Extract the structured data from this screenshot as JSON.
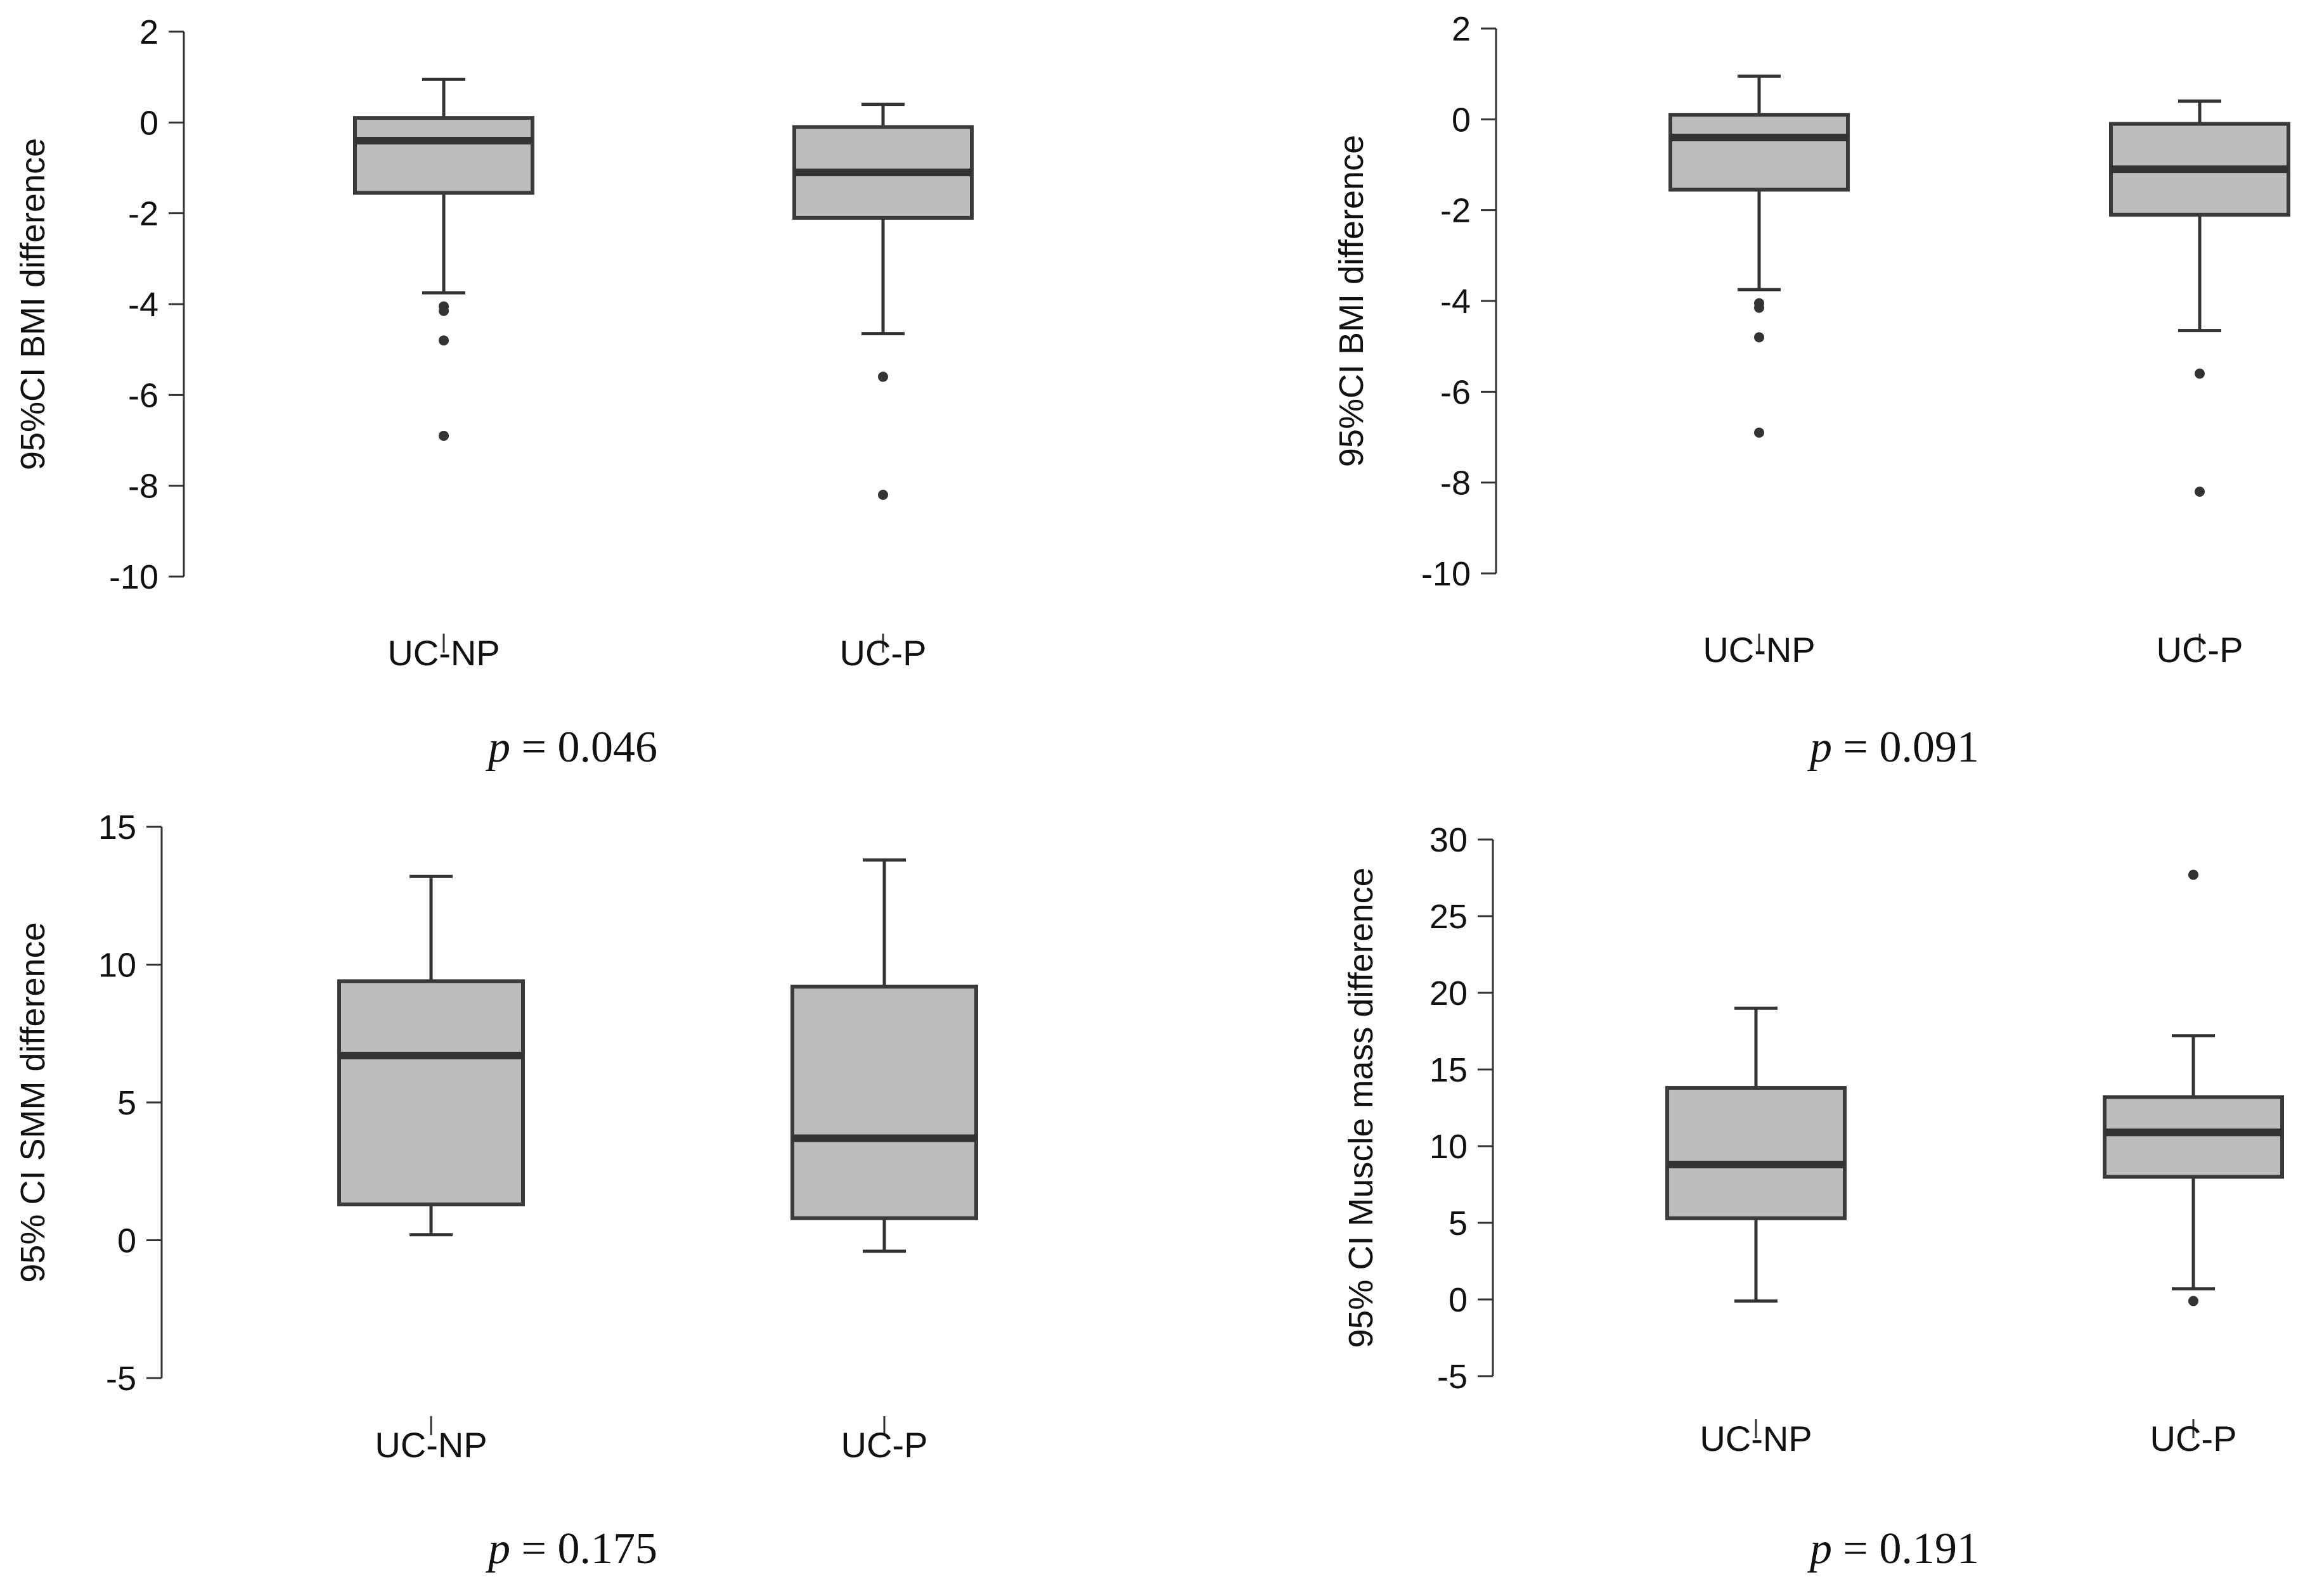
{
  "chart_data": [
    {
      "type": "box",
      "ylabel": "95%CI  BMI difference",
      "ylim": [
        -10,
        2
      ],
      "yticks": [
        2,
        0,
        -2,
        -4,
        -6,
        -8,
        -10
      ],
      "categories": [
        "UC-NP",
        "UC-P"
      ],
      "boxes": [
        {
          "name": "UC-NP",
          "min": -3.75,
          "q1": -1.55,
          "median": -0.4,
          "q3": 0.1,
          "max": 0.95,
          "outliers": [
            -4.05,
            -4.15,
            -4.8,
            -6.9
          ]
        },
        {
          "name": "UC-P",
          "min": -4.65,
          "q1": -2.1,
          "median": -1.1,
          "q3": -0.1,
          "max": 0.4,
          "outliers": [
            -5.6,
            -8.2
          ]
        }
      ],
      "p_label": "p",
      "p_value": "= 0.046"
    },
    {
      "type": "box",
      "ylabel": "95%CI  BMI difference",
      "ylim": [
        -10,
        2
      ],
      "yticks": [
        2,
        0,
        -2,
        -4,
        -6,
        -8,
        -10
      ],
      "categories": [
        "UC-NP",
        "UC-P"
      ],
      "boxes": [
        {
          "name": "UC-NP",
          "min": -3.75,
          "q1": -1.55,
          "median": -0.4,
          "q3": 0.1,
          "max": 0.95,
          "outliers": [
            -4.05,
            -4.15,
            -4.8,
            -6.9
          ]
        },
        {
          "name": "UC-P",
          "min": -4.65,
          "q1": -2.1,
          "median": -1.1,
          "q3": -0.1,
          "max": 0.4,
          "outliers": [
            -5.6,
            -8.2
          ]
        }
      ],
      "p_label": "p",
      "p_value": "= 0.091"
    },
    {
      "type": "box",
      "ylabel": "95% CI SMM difference",
      "ylim": [
        -5,
        15
      ],
      "yticks": [
        15,
        10,
        5,
        0,
        -5
      ],
      "categories": [
        "UC-NP",
        "UC-P"
      ],
      "boxes": [
        {
          "name": "UC-NP",
          "min": 0.2,
          "q1": 1.3,
          "median": 6.7,
          "q3": 9.4,
          "max": 13.2,
          "outliers": []
        },
        {
          "name": "UC-P",
          "min": -0.4,
          "q1": 0.8,
          "median": 3.7,
          "q3": 9.2,
          "max": 13.8,
          "outliers": []
        }
      ],
      "p_label": "p",
      "p_value": "= 0.175"
    },
    {
      "type": "box",
      "ylabel": "95% CI  Muscle mass difference",
      "ylim": [
        -5,
        30
      ],
      "yticks": [
        30,
        25,
        20,
        15,
        10,
        5,
        0,
        -5
      ],
      "categories": [
        "UC-NP",
        "UC-P"
      ],
      "boxes": [
        {
          "name": "UC-NP",
          "min": -0.1,
          "q1": 5.3,
          "median": 8.8,
          "q3": 13.8,
          "max": 19.0,
          "outliers": []
        },
        {
          "name": "UC-P",
          "min": 0.7,
          "q1": 8.0,
          "median": 10.9,
          "q3": 13.2,
          "max": 17.2,
          "outliers": [
            27.7,
            -0.1
          ]
        }
      ],
      "p_label": "p",
      "p_value": "= 0.191"
    }
  ]
}
